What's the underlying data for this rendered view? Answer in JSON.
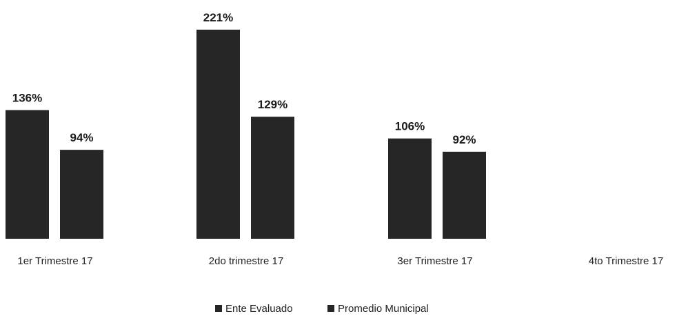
{
  "chart_data": {
    "type": "bar",
    "categories": [
      "1er Trimestre 17",
      "2do trimestre 17",
      "3er Trimestre 17",
      "4to Trimestre 17"
    ],
    "series": [
      {
        "name": "Ente Evaluado",
        "values": [
          136,
          221,
          106,
          null
        ],
        "labels": [
          "136%",
          "221%",
          "106%",
          ""
        ]
      },
      {
        "name": "Promedio Municipal",
        "values": [
          94,
          129,
          92,
          null
        ],
        "labels": [
          "94%",
          "129%",
          "92%",
          ""
        ]
      }
    ],
    "ylim": [
      0,
      221
    ],
    "grid": false,
    "legend_position": "bottom-center",
    "colors": {
      "bar": "#262626",
      "background": "#ffffff",
      "text": "#222222"
    }
  }
}
